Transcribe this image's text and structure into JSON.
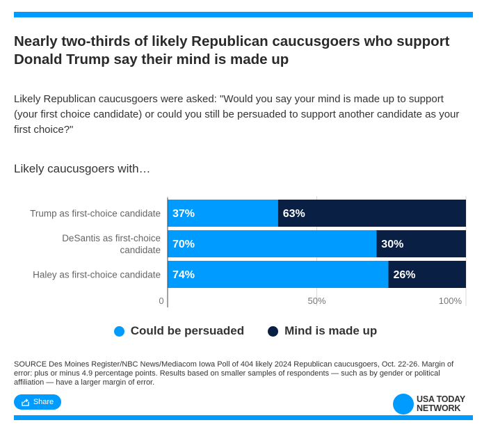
{
  "title": "Nearly two-thirds of likely Republican caucusgoers who support Donald Trump say their mind is made up",
  "question": "Likely Republican caucusgoers were asked: \"Would you say your mind is made up to support (your first choice candidate) or could you still be persuaded to support another candidate as your first choice?\"",
  "subheading": "Likely caucusgoers with…",
  "chart_data": {
    "type": "bar",
    "orientation": "horizontal",
    "stacked": true,
    "categories": [
      [
        "Trump as first-choice candidate"
      ],
      [
        "DeSantis as first-choice",
        "candidate"
      ],
      [
        "Haley as first-choice candidate"
      ]
    ],
    "series": [
      {
        "name": "Could be persuaded",
        "values": [
          37,
          70,
          74
        ],
        "color": "#009bff",
        "labels": [
          "37%",
          "70%",
          "74%"
        ]
      },
      {
        "name": "Mind is made up",
        "values": [
          63,
          30,
          26
        ],
        "color": "#0a1f44",
        "labels": [
          "63%",
          "30%",
          "26%"
        ]
      }
    ],
    "xlim": [
      0,
      100
    ],
    "xticks": [
      0,
      50,
      100
    ],
    "xtick_labels": [
      "0",
      "50%",
      "100%"
    ],
    "grid": true,
    "legend_position": "bottom"
  },
  "legend": {
    "items": [
      {
        "label": "Could be persuaded",
        "color": "#009bff"
      },
      {
        "label": "Mind is made up",
        "color": "#0a1f44"
      }
    ]
  },
  "source": "SOURCE Des Moines Register/NBC News/Mediacom Iowa Poll of 404 likely 2024 Republican caucusgoers, Oct. 22-26. Margin of error: plus or minus 4.9 percentage points. Results based on smaller samples of respondents — such as by gender or political affiliation — have a larger margin of error.",
  "share": {
    "label": "Share",
    "icon": "share-icon"
  },
  "logo": {
    "line1": "USA TODAY",
    "line2": "NETWORK"
  },
  "colors": {
    "accent": "#009bff",
    "dark": "#0a1f44"
  }
}
